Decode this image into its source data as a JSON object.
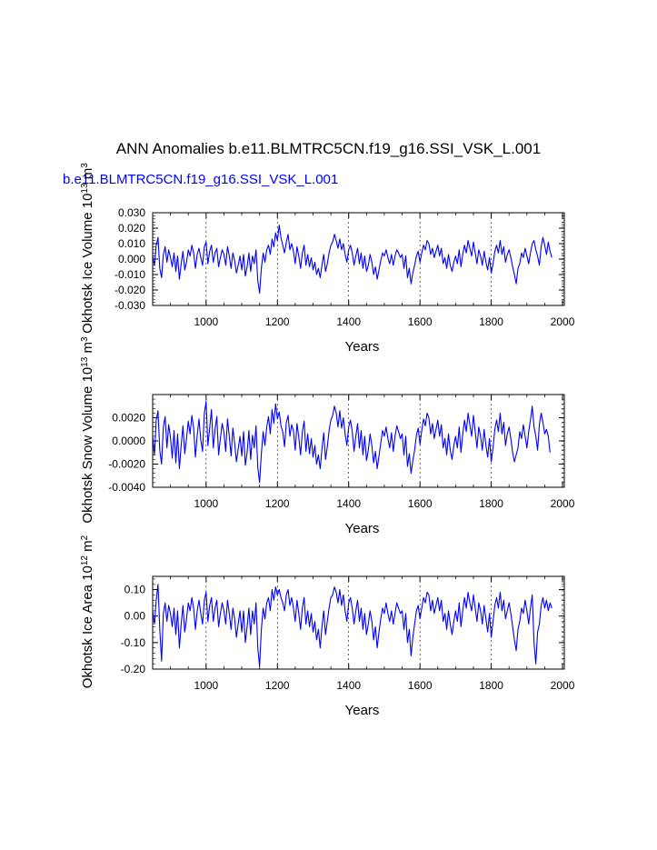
{
  "title": "ANN Anomalies b.e11.BLMTRC5CN.f19_g16.SSI_VSK_L.001",
  "case_label": "b.e11.BLMTRC5CN.f19_g16.SSI_VSK_L.001",
  "colors": {
    "series": "#0000ff",
    "axes": "#000000",
    "case_label": "#0000ff",
    "grid": "#000000"
  },
  "chart_data": [
    {
      "type": "line",
      "ylabel": "Okhotsk Ice Volume 10^13 m^3",
      "xlabel": "Years",
      "xlim": [
        850,
        2005
      ],
      "xticks": [
        1000,
        1200,
        1400,
        1600,
        1800,
        2000
      ],
      "xtick_labels": [
        "1000",
        "1200",
        "1400",
        "1600",
        "1800",
        "2000"
      ],
      "ylim": [
        -0.03,
        0.03
      ],
      "yticks": [
        -0.03,
        -0.02,
        -0.01,
        0.0,
        0.01,
        0.02,
        0.03
      ],
      "ytick_labels": [
        "-0.030",
        "-0.020",
        "-0.010",
        "0.000",
        "0.010",
        "0.020",
        "0.030"
      ],
      "vertical_grid": "dashed at major x ticks",
      "series": [
        {
          "x_start": 850,
          "x_step": 5,
          "values": [
            0.002,
            -0.004,
            0.009,
            0.014,
            -0.006,
            -0.012,
            0.003,
            0.008,
            -0.002,
            0.006,
            0.001,
            -0.005,
            0.004,
            -0.008,
            0.002,
            -0.013,
            -0.003,
            0.005,
            -0.007,
            -0.002,
            0.006,
            0.002,
            0.009,
            0.004,
            -0.006,
            0.003,
            0.007,
            0.001,
            -0.004,
            0.008,
            0.011,
            -0.003,
            0.005,
            0.009,
            -0.002,
            0.004,
            0.007,
            -0.005,
            0.001,
            0.006,
            0.003,
            -0.004,
            0.008,
            0.002,
            -0.006,
            0.004,
            -0.001,
            -0.009,
            -0.004,
            0.002,
            -0.007,
            0.003,
            -0.011,
            -0.005,
            0.004,
            -0.008,
            0.002,
            -0.003,
            0.006,
            -0.014,
            -0.022,
            -0.006,
            0.004,
            -0.002,
            0.006,
            0.009,
            0.003,
            0.013,
            0.008,
            0.017,
            0.012,
            0.022,
            0.014,
            0.009,
            0.004,
            0.011,
            0.016,
            0.006,
            0.01,
            0.005,
            -0.003,
            0.008,
            0.002,
            -0.006,
            0.004,
            0.009,
            -0.004,
            0.003,
            -0.005,
            0.001,
            -0.007,
            -0.002,
            -0.01,
            -0.006,
            -0.012,
            -0.004,
            0.003,
            -0.008,
            -0.003,
            0.004,
            0.009,
            0.011,
            0.016,
            0.012,
            0.007,
            0.013,
            0.006,
            0.01,
            0.003,
            -0.002,
            0.006,
            0.009,
            0.004,
            -0.004,
            0.002,
            0.007,
            -0.003,
            0.004,
            -0.006,
            0.002,
            -0.008,
            -0.004,
            0.003,
            -0.002,
            -0.01,
            -0.005,
            -0.013,
            -0.007,
            -0.001,
            0.004,
            0.002,
            0.006,
            0.001,
            -0.003,
            0.003,
            -0.004,
            0.002,
            0.006,
            0.004,
            0.001,
            0.003,
            -0.006,
            0.002,
            -0.012,
            -0.006,
            -0.016,
            -0.009,
            -0.004,
            0.002,
            0.005,
            -0.002,
            0.004,
            0.009,
            0.006,
            0.012,
            0.01,
            0.003,
            0.007,
            0.001,
            0.005,
            0.009,
            0.002,
            0.007,
            -0.003,
            0.001,
            -0.006,
            0.003,
            -0.004,
            -0.008,
            -0.002,
            0.002,
            -0.003,
            0.006,
            -0.005,
            0.003,
            0.009,
            0.004,
            0.012,
            0.007,
            0.002,
            0.011,
            0.004,
            -0.003,
            0.006,
            0.002,
            -0.004,
            0.005,
            -0.002,
            -0.007,
            0.001,
            -0.009,
            -0.003,
            0.005,
            0.009,
            0.004,
            0.012,
            0.003,
            0.008,
            -0.002,
            0.003,
            0.006,
            0.001,
            -0.005,
            -0.01,
            -0.016,
            -0.006,
            -0.003,
            0.004,
            0.001,
            0.007,
            0.002,
            -0.003,
            0.004,
            0.01,
            0.012,
            0.006,
            0.002,
            -0.004,
            0.008,
            0.014,
            0.009,
            0.003,
            0.011,
            0.005,
            0.001
          ]
        }
      ]
    },
    {
      "type": "line",
      "ylabel": "Okhotsk Snow Volume 10^13 m^3",
      "xlabel": "Years",
      "xlim": [
        850,
        2005
      ],
      "xticks": [
        1000,
        1200,
        1400,
        1600,
        1800,
        2000
      ],
      "xtick_labels": [
        "1000",
        "1200",
        "1400",
        "1600",
        "1800",
        "2000"
      ],
      "ylim": [
        -0.004,
        0.004
      ],
      "yticks": [
        -0.004,
        -0.002,
        0.0,
        0.002
      ],
      "ytick_labels": [
        "-0.0040",
        "-0.0020",
        "0.0000",
        "0.0020"
      ],
      "vertical_grid": "dashed at major x ticks",
      "series": [
        {
          "x_start": 850,
          "x_step": 5,
          "values": [
            0.0004,
            -0.0012,
            0.0018,
            0.0026,
            -0.0008,
            -0.002,
            0.0012,
            0.0021,
            -0.0006,
            0.0014,
            0.0003,
            -0.0015,
            0.0009,
            -0.0019,
            0.0006,
            -0.0024,
            -0.0004,
            0.0013,
            -0.0011,
            0.0002,
            0.0017,
            0.0006,
            0.0022,
            0.0011,
            -0.0014,
            0.0005,
            0.0019,
            0.0001,
            -0.0009,
            0.0024,
            0.0034,
            -0.0004,
            0.0011,
            0.0027,
            -0.0006,
            0.001,
            0.0021,
            -0.0012,
            0.0002,
            0.0015,
            0.0007,
            -0.0009,
            0.0019,
            0.0004,
            -0.0013,
            0.0011,
            -0.0002,
            -0.0018,
            -0.0007,
            0.0004,
            -0.0013,
            0.0008,
            -0.0021,
            -0.001,
            0.0009,
            -0.0016,
            0.0005,
            -0.0006,
            0.0013,
            -0.0023,
            -0.0036,
            -0.0011,
            0.0008,
            -0.0004,
            0.0012,
            0.0021,
            0.0006,
            0.0027,
            0.0015,
            0.0032,
            0.0019,
            0.0025,
            0.0013,
            0.0008,
            -0.0005,
            0.0016,
            0.0022,
            0.0004,
            0.0014,
            0.0009,
            -0.0008,
            0.0015,
            0.0003,
            -0.0012,
            0.0008,
            0.0017,
            -0.0009,
            0.0006,
            -0.0011,
            0.0002,
            -0.0014,
            -0.0004,
            -0.002,
            -0.0012,
            -0.0024,
            -0.0007,
            0.0007,
            -0.0016,
            -0.0005,
            0.0009,
            0.0018,
            0.0022,
            0.003,
            0.0024,
            0.0012,
            0.0026,
            0.0011,
            0.002,
            0.0006,
            -0.0004,
            0.0012,
            0.0018,
            0.0008,
            -0.0009,
            0.0004,
            0.0015,
            -0.0006,
            0.0009,
            -0.0012,
            0.0004,
            -0.0017,
            -0.0008,
            0.0006,
            -0.0004,
            -0.0019,
            -0.0009,
            -0.0024,
            -0.0013,
            -0.0002,
            0.0009,
            0.0004,
            0.0012,
            0.0002,
            -0.0006,
            0.0007,
            -0.0009,
            0.0004,
            0.0013,
            0.0008,
            0.0002,
            0.0006,
            -0.0012,
            0.0004,
            -0.0022,
            -0.0011,
            -0.0028,
            -0.0017,
            -0.0008,
            0.0005,
            0.0011,
            -0.0003,
            0.0009,
            0.0019,
            0.0013,
            0.0024,
            0.002,
            0.0006,
            0.0015,
            0.0002,
            0.001,
            0.0018,
            0.0004,
            0.0014,
            -0.0006,
            0.0002,
            -0.0012,
            0.0006,
            -0.0008,
            -0.0016,
            -0.0004,
            0.0004,
            -0.0006,
            0.0012,
            -0.001,
            0.0006,
            0.0018,
            0.0008,
            0.0024,
            0.0014,
            0.0004,
            0.0022,
            0.0008,
            -0.0006,
            0.0012,
            0.0004,
            -0.0008,
            0.001,
            -0.0004,
            -0.0014,
            0.0002,
            -0.0018,
            -0.0006,
            0.001,
            0.0018,
            0.0008,
            0.0024,
            0.0006,
            0.0016,
            -0.0004,
            0.0006,
            0.0012,
            0.0002,
            -0.001,
            -0.0018,
            -0.0012,
            -0.0006,
            0.0008,
            0.0002,
            0.0014,
            0.0004,
            -0.0006,
            0.0008,
            0.0018,
            0.003,
            0.0012,
            0.0004,
            -0.0008,
            0.0014,
            0.0024,
            0.0016,
            0.0006,
            0.001,
            0.0004,
            -0.001
          ]
        }
      ]
    },
    {
      "type": "line",
      "ylabel": "Okhotsk Ice Area 10^12 m^2",
      "xlabel": "Years",
      "xlim": [
        850,
        2005
      ],
      "xticks": [
        1000,
        1200,
        1400,
        1600,
        1800,
        2000
      ],
      "xtick_labels": [
        "1000",
        "1200",
        "1400",
        "1600",
        "1800",
        "2000"
      ],
      "ylim": [
        -0.2,
        0.15
      ],
      "yticks": [
        -0.2,
        -0.1,
        0.0,
        0.1
      ],
      "ytick_labels": [
        "-0.20",
        "-0.10",
        "0.00",
        "0.10"
      ],
      "vertical_grid": "dashed at major x ticks",
      "series": [
        {
          "x_start": 850,
          "x_step": 5,
          "values": [
            0.02,
            -0.03,
            0.06,
            0.12,
            -0.05,
            -0.17,
            0.01,
            0.05,
            -0.02,
            0.04,
            0.01,
            -0.04,
            0.03,
            -0.07,
            0.02,
            -0.12,
            -0.03,
            0.04,
            -0.06,
            -0.01,
            0.05,
            0.02,
            0.07,
            0.03,
            -0.05,
            0.02,
            0.06,
            0.01,
            -0.03,
            0.06,
            0.09,
            -0.02,
            0.04,
            0.07,
            -0.02,
            0.03,
            0.06,
            -0.04,
            0.01,
            0.05,
            0.02,
            -0.03,
            0.06,
            0.01,
            -0.05,
            0.03,
            -0.01,
            -0.08,
            -0.03,
            0.02,
            -0.06,
            0.02,
            -0.1,
            -0.04,
            0.03,
            -0.07,
            0.02,
            -0.03,
            0.05,
            -0.12,
            -0.19,
            -0.05,
            0.03,
            -0.01,
            0.05,
            0.07,
            0.02,
            0.1,
            0.06,
            0.11,
            0.08,
            0.1,
            0.07,
            0.05,
            0.02,
            0.08,
            0.1,
            0.04,
            0.07,
            0.03,
            -0.02,
            0.06,
            0.01,
            -0.05,
            0.03,
            0.07,
            -0.03,
            0.02,
            -0.04,
            0.01,
            -0.06,
            -0.02,
            -0.09,
            -0.05,
            -0.12,
            -0.04,
            0.02,
            -0.07,
            -0.02,
            0.03,
            0.07,
            0.08,
            0.11,
            0.09,
            0.05,
            0.1,
            0.04,
            0.08,
            0.02,
            -0.02,
            0.05,
            0.07,
            0.03,
            -0.03,
            0.02,
            0.06,
            -0.02,
            0.03,
            -0.05,
            0.01,
            -0.07,
            -0.03,
            0.02,
            -0.02,
            -0.09,
            -0.04,
            -0.12,
            -0.06,
            -0.01,
            0.03,
            0.01,
            0.05,
            0.01,
            -0.02,
            0.02,
            -0.03,
            0.01,
            0.05,
            0.03,
            0.01,
            0.02,
            -0.05,
            0.01,
            -0.1,
            -0.05,
            -0.15,
            -0.08,
            -0.03,
            0.02,
            0.04,
            -0.01,
            0.03,
            0.07,
            0.05,
            0.09,
            0.08,
            0.02,
            0.06,
            0.01,
            0.04,
            0.07,
            0.02,
            0.06,
            -0.02,
            0.01,
            -0.05,
            0.02,
            -0.03,
            -0.07,
            -0.02,
            0.02,
            -0.02,
            0.05,
            -0.04,
            0.02,
            0.07,
            0.03,
            0.09,
            0.05,
            0.02,
            0.08,
            0.03,
            -0.02,
            0.05,
            0.02,
            -0.03,
            0.04,
            -0.01,
            -0.06,
            0.01,
            -0.08,
            -0.02,
            0.04,
            0.07,
            0.03,
            0.09,
            0.02,
            0.06,
            -0.01,
            0.02,
            0.05,
            0.01,
            -0.04,
            -0.09,
            -0.13,
            -0.05,
            -0.02,
            0.03,
            0.01,
            0.06,
            0.02,
            -0.03,
            0.03,
            0.08,
            -0.1,
            -0.18,
            -0.06,
            -0.03,
            0.04,
            0.07,
            0.03,
            0.06,
            0.02,
            0.05,
            0.03
          ]
        }
      ]
    }
  ]
}
